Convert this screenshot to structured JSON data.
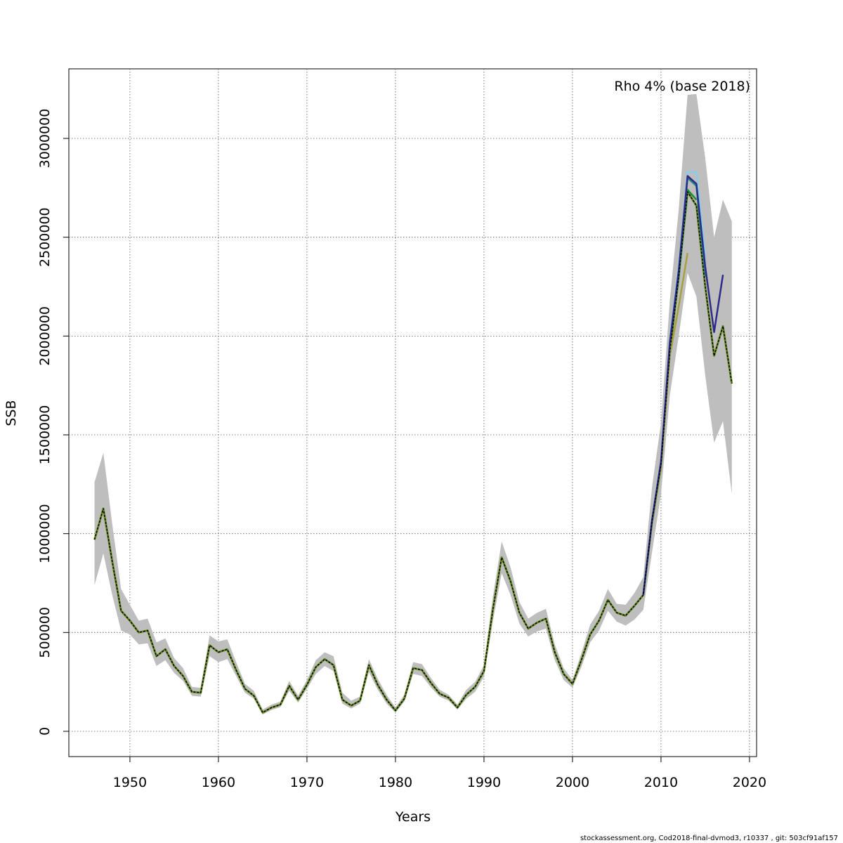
{
  "chart_data": {
    "type": "line",
    "xlabel": "Years",
    "ylabel": "SSB",
    "annotation": "Rho 4% (base 2018)",
    "footer": "stockassessment.org, Cod2018-final-dvmod3, r10337 , git: 503cf91af157",
    "xlim": [
      1943.1,
      2020.8
    ],
    "ylim": [
      -128000,
      3352000
    ],
    "xticks": [
      1950,
      1960,
      1970,
      1980,
      1990,
      2000,
      2010,
      2020
    ],
    "yticks": [
      0,
      500000,
      1000000,
      1500000,
      2000000,
      2500000,
      3000000
    ],
    "grid": true,
    "x": [
      1946,
      1947,
      1948,
      1949,
      1950,
      1951,
      1952,
      1953,
      1954,
      1955,
      1956,
      1957,
      1958,
      1959,
      1960,
      1961,
      1962,
      1963,
      1964,
      1965,
      1966,
      1967,
      1968,
      1969,
      1970,
      1971,
      1972,
      1973,
      1974,
      1975,
      1976,
      1977,
      1978,
      1979,
      1980,
      1981,
      1982,
      1983,
      1984,
      1985,
      1986,
      1987,
      1988,
      1989,
      1990,
      1991,
      1992,
      1993,
      1994,
      1995,
      1996,
      1997,
      1998,
      1999,
      2000,
      2001,
      2002,
      2003,
      2004,
      2005,
      2006,
      2007,
      2008,
      2009,
      2010,
      2011,
      2012,
      2013,
      2014,
      2015,
      2016,
      2017,
      2018
    ],
    "band": {
      "color": "#bebebe",
      "upper": [
        1260000,
        1410000,
        1050000,
        720000,
        640000,
        560000,
        570000,
        450000,
        470000,
        370000,
        320000,
        225000,
        220000,
        485000,
        455000,
        465000,
        350000,
        240000,
        205000,
        110000,
        135000,
        150000,
        255000,
        180000,
        260000,
        360000,
        400000,
        380000,
        195000,
        155000,
        175000,
        365000,
        265000,
        185000,
        120000,
        185000,
        350000,
        340000,
        270000,
        210000,
        185000,
        135000,
        210000,
        250000,
        335000,
        680000,
        960000,
        830000,
        655000,
        570000,
        600000,
        620000,
        440000,
        320000,
        260000,
        395000,
        540000,
        610000,
        720000,
        645000,
        640000,
        700000,
        780000,
        1240000,
        1560000,
        2180000,
        2640000,
        3220000,
        3225000,
        2900000,
        2500000,
        2690000,
        2580000
      ],
      "lower": [
        740000,
        900000,
        690000,
        510000,
        490000,
        440000,
        445000,
        330000,
        360000,
        295000,
        255000,
        180000,
        175000,
        380000,
        350000,
        365000,
        280000,
        195000,
        165000,
        85000,
        108000,
        122000,
        205000,
        145000,
        215000,
        290000,
        330000,
        305000,
        140000,
        115000,
        140000,
        300000,
        210000,
        140000,
        95000,
        150000,
        290000,
        280000,
        222000,
        175000,
        155000,
        110000,
        165000,
        200000,
        275000,
        555000,
        800000,
        690000,
        545000,
        480000,
        505000,
        520000,
        360000,
        260000,
        220000,
        325000,
        450000,
        510000,
        610000,
        555000,
        535000,
        565000,
        615000,
        910000,
        1200000,
        1700000,
        2000000,
        2320000,
        2200000,
        1800000,
        1460000,
        1570000,
        1200000
      ]
    },
    "base": {
      "color": "#000000",
      "dashed": true,
      "values": [
        970000,
        1127000,
        860000,
        610000,
        560000,
        500000,
        510000,
        380000,
        415000,
        330000,
        280000,
        200000,
        195000,
        435000,
        400000,
        415000,
        310000,
        215000,
        180000,
        95000,
        120000,
        135000,
        230000,
        160000,
        235000,
        325000,
        365000,
        335000,
        160000,
        130000,
        155000,
        335000,
        235000,
        160000,
        105000,
        165000,
        320000,
        310000,
        245000,
        190000,
        170000,
        120000,
        185000,
        225000,
        305000,
        615000,
        880000,
        760000,
        600000,
        520000,
        550000,
        570000,
        400000,
        290000,
        240000,
        360000,
        490000,
        560000,
        665000,
        600000,
        585000,
        635000,
        690000,
        1070000,
        1350000,
        1920000,
        2300000,
        2730000,
        2660000,
        2250000,
        1900000,
        2050000,
        1760000
      ]
    },
    "series": [
      {
        "color": "#a8a040",
        "x": [
          2008,
          2009,
          2010,
          2011,
          2012,
          2013
        ],
        "values": [
          690000,
          1050000,
          1330000,
          1900000,
          2150000,
          2420000
        ]
      },
      {
        "color": "#1f8a3a",
        "x": [
          2008,
          2009,
          2010,
          2011,
          2012,
          2013,
          2014
        ],
        "values": [
          690000,
          1065000,
          1355000,
          1950000,
          2300000,
          2740000,
          2690000
        ]
      },
      {
        "color": "#2a8a7a",
        "x": [
          2008,
          2009,
          2010,
          2011,
          2012,
          2013,
          2014,
          2015
        ],
        "values": [
          690000,
          1070000,
          1360000,
          1960000,
          2320000,
          2800000,
          2760000,
          2300000
        ]
      },
      {
        "color": "#87ceeb",
        "x": [
          2008,
          2009,
          2010,
          2011,
          2012,
          2013,
          2014,
          2015
        ],
        "values": [
          690000,
          1075000,
          1370000,
          1980000,
          2340000,
          2830000,
          2830000,
          2400000
        ]
      },
      {
        "color": "#2e2a8a",
        "x": [
          2008,
          2009,
          2010,
          2011,
          2012,
          2013,
          2014,
          2015,
          2016,
          2017
        ],
        "values": [
          690000,
          1072000,
          1365000,
          1970000,
          2330000,
          2810000,
          2770000,
          2350000,
          2020000,
          2310000
        ]
      }
    ]
  }
}
